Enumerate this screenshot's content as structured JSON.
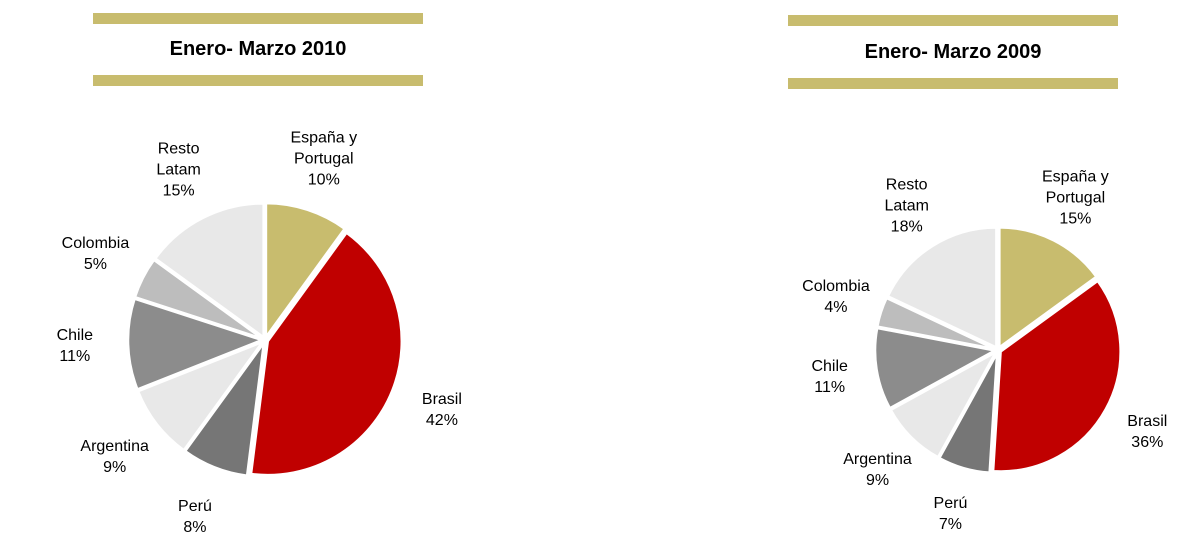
{
  "chart_data": [
    {
      "type": "pie",
      "title": "Enero- Marzo 2010",
      "categories": [
        "España y Portugal",
        "Brasil",
        "Perú",
        "Argentina",
        "Chile",
        "Colombia",
        "Resto Latam"
      ],
      "values": [
        10,
        42,
        8,
        9,
        11,
        5,
        15
      ],
      "value_labels": [
        "10%",
        "42%",
        "8%",
        "9%",
        "11%",
        "5%",
        "15%"
      ],
      "colors": [
        "#c8bc6e",
        "#c00000",
        "#767676",
        "#e8e8e8",
        "#8c8c8c",
        "#bdbdbd",
        "#e8e8e8"
      ]
    },
    {
      "type": "pie",
      "title": "Enero- Marzo 2009",
      "categories": [
        "España y Portugal",
        "Brasil",
        "Perú",
        "Argentina",
        "Chile",
        "Colombia",
        "Resto Latam"
      ],
      "values": [
        15,
        36,
        7,
        9,
        11,
        4,
        18
      ],
      "value_labels": [
        "15%",
        "36%",
        "7%",
        "9%",
        "11%",
        "4%",
        "18%"
      ],
      "colors": [
        "#c8bc6e",
        "#c00000",
        "#767676",
        "#e8e8e8",
        "#8c8c8c",
        "#bdbdbd",
        "#e8e8e8"
      ]
    }
  ]
}
